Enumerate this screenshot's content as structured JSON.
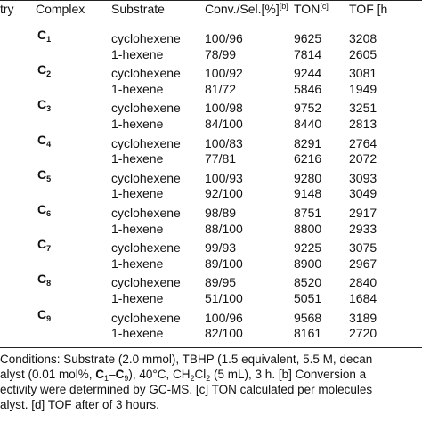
{
  "table": {
    "header": {
      "entry": "try",
      "complex": "Complex",
      "substrate": "Substrate",
      "conv_sel": {
        "text": "Conv./Sel.[%]",
        "note": "[b]"
      },
      "ton": {
        "text": "TON",
        "note": "[c]"
      },
      "tof": "TOF [h"
    },
    "rows": [
      {
        "complex": {
          "letter": "C",
          "sub": "1"
        },
        "entries": [
          {
            "substrate": "cyclohexene",
            "conv_sel": "100/96",
            "ton": 9625,
            "tof": 3208
          },
          {
            "substrate": "1-hexene",
            "conv_sel": "78/99",
            "ton": 7814,
            "tof": 2605
          }
        ]
      },
      {
        "complex": {
          "letter": "C",
          "sub": "2"
        },
        "entries": [
          {
            "substrate": "cyclohexene",
            "conv_sel": "100/92",
            "ton": 9244,
            "tof": 3081
          },
          {
            "substrate": "1-hexene",
            "conv_sel": "81/72",
            "ton": 5846,
            "tof": 1949
          }
        ]
      },
      {
        "complex": {
          "letter": "C",
          "sub": "3"
        },
        "entries": [
          {
            "substrate": "cyclohexene",
            "conv_sel": "100/98",
            "ton": 9752,
            "tof": 3251
          },
          {
            "substrate": "1-hexene",
            "conv_sel": "84/100",
            "ton": 8440,
            "tof": 2813
          }
        ]
      },
      {
        "complex": {
          "letter": "C",
          "sub": "4"
        },
        "entries": [
          {
            "substrate": "cyclohexene",
            "conv_sel": "100/83",
            "ton": 8291,
            "tof": 2764
          },
          {
            "substrate": "1-hexene",
            "conv_sel": "77/81",
            "ton": 6216,
            "tof": 2072
          }
        ]
      },
      {
        "complex": {
          "letter": "C",
          "sub": "5"
        },
        "entries": [
          {
            "substrate": "cyclohexene",
            "conv_sel": "100/93",
            "ton": 9280,
            "tof": 3093
          },
          {
            "substrate": "1-hexene",
            "conv_sel": "92/100",
            "ton": 9148,
            "tof": 3049
          }
        ]
      },
      {
        "complex": {
          "letter": "C",
          "sub": "6"
        },
        "entries": [
          {
            "substrate": "cyclohexene",
            "conv_sel": "98/89",
            "ton": 8751,
            "tof": 2917
          },
          {
            "substrate": "1-hexene",
            "conv_sel": "88/100",
            "ton": 8800,
            "tof": 2933
          }
        ]
      },
      {
        "complex": {
          "letter": "C",
          "sub": "7"
        },
        "entries": [
          {
            "substrate": "cyclohexene",
            "conv_sel": "99/93",
            "ton": 9225,
            "tof": 3075
          },
          {
            "substrate": "1-hexene",
            "conv_sel": "89/100",
            "ton": 8900,
            "tof": 2967
          }
        ]
      },
      {
        "complex": {
          "letter": "C",
          "sub": "8"
        },
        "entries": [
          {
            "substrate": "cyclohexene",
            "conv_sel": "89/95",
            "ton": 8520,
            "tof": 2840
          },
          {
            "substrate": "1-hexene",
            "conv_sel": "51/100",
            "ton": 5051,
            "tof": 1684
          }
        ]
      },
      {
        "complex": {
          "letter": "C",
          "sub": "9"
        },
        "entries": [
          {
            "substrate": "cyclohexene",
            "conv_sel": "100/96",
            "ton": 9568,
            "tof": 3189
          },
          {
            "substrate": "1-hexene",
            "conv_sel": "82/100",
            "ton": 8161,
            "tof": 2720
          }
        ]
      }
    ],
    "footnotes": [
      [
        "Conditions: Substrate (2.0 mmol), TBHP (1.5 equivalent, 5.5 M, decan"
      ],
      [
        "alyst (0.01 mol%, ",
        "C",
        "1",
        "–",
        "C",
        "9",
        "), 40°C, CH",
        "2",
        "Cl",
        "2",
        " (5 mL), 3 h. [b] Conversion a"
      ],
      [
        "ectivity were determined by GC-MS. [c] TON calculated per molecules"
      ],
      [
        "alyst. [d] TOF after of 3 hours."
      ]
    ]
  }
}
